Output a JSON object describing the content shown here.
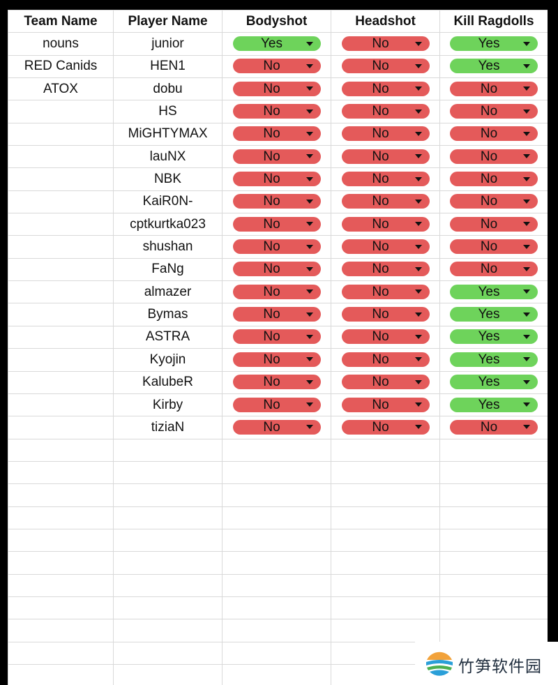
{
  "columns": {
    "team": "Team Name",
    "player": "Player Name",
    "bodyshot": "Bodyshot",
    "headshot": "Headshot",
    "kill_ragdolls": "Kill Ragdolls"
  },
  "colors": {
    "yes": "#6ed35b",
    "no": "#e45a5a"
  },
  "rows": [
    {
      "team": "nouns",
      "player": "junior",
      "bodyshot": "Yes",
      "headshot": "No",
      "kill_ragdolls": "Yes"
    },
    {
      "team": "RED Canids",
      "player": "HEN1",
      "bodyshot": "No",
      "headshot": "No",
      "kill_ragdolls": "Yes"
    },
    {
      "team": "ATOX",
      "player": "dobu",
      "bodyshot": "No",
      "headshot": "No",
      "kill_ragdolls": "No"
    },
    {
      "team": "",
      "player": "HS",
      "bodyshot": "No",
      "headshot": "No",
      "kill_ragdolls": "No"
    },
    {
      "team": "",
      "player": "MiGHTYMAX",
      "bodyshot": "No",
      "headshot": "No",
      "kill_ragdolls": "No"
    },
    {
      "team": "",
      "player": "lauNX",
      "bodyshot": "No",
      "headshot": "No",
      "kill_ragdolls": "No"
    },
    {
      "team": "",
      "player": "NBK",
      "bodyshot": "No",
      "headshot": "No",
      "kill_ragdolls": "No"
    },
    {
      "team": "",
      "player": "KaiR0N-",
      "bodyshot": "No",
      "headshot": "No",
      "kill_ragdolls": "No"
    },
    {
      "team": "",
      "player": "cptkurtka023",
      "bodyshot": "No",
      "headshot": "No",
      "kill_ragdolls": "No"
    },
    {
      "team": "",
      "player": "shushan",
      "bodyshot": "No",
      "headshot": "No",
      "kill_ragdolls": "No"
    },
    {
      "team": "",
      "player": "FaNg",
      "bodyshot": "No",
      "headshot": "No",
      "kill_ragdolls": "No"
    },
    {
      "team": "",
      "player": "almazer",
      "bodyshot": "No",
      "headshot": "No",
      "kill_ragdolls": "Yes"
    },
    {
      "team": "",
      "player": "Bymas",
      "bodyshot": "No",
      "headshot": "No",
      "kill_ragdolls": "Yes"
    },
    {
      "team": "",
      "player": "ASTRA",
      "bodyshot": "No",
      "headshot": "No",
      "kill_ragdolls": "Yes"
    },
    {
      "team": "",
      "player": "Kyojin",
      "bodyshot": "No",
      "headshot": "No",
      "kill_ragdolls": "Yes"
    },
    {
      "team": "",
      "player": "KalubeR",
      "bodyshot": "No",
      "headshot": "No",
      "kill_ragdolls": "Yes"
    },
    {
      "team": "",
      "player": "Kirby",
      "bodyshot": "No",
      "headshot": "No",
      "kill_ragdolls": "Yes"
    },
    {
      "team": "",
      "player": "tiziaN",
      "bodyshot": "No",
      "headshot": "No",
      "kill_ragdolls": "No"
    }
  ],
  "watermark": {
    "text": "竹笋软件园",
    "icon": "site-logo-icon"
  }
}
